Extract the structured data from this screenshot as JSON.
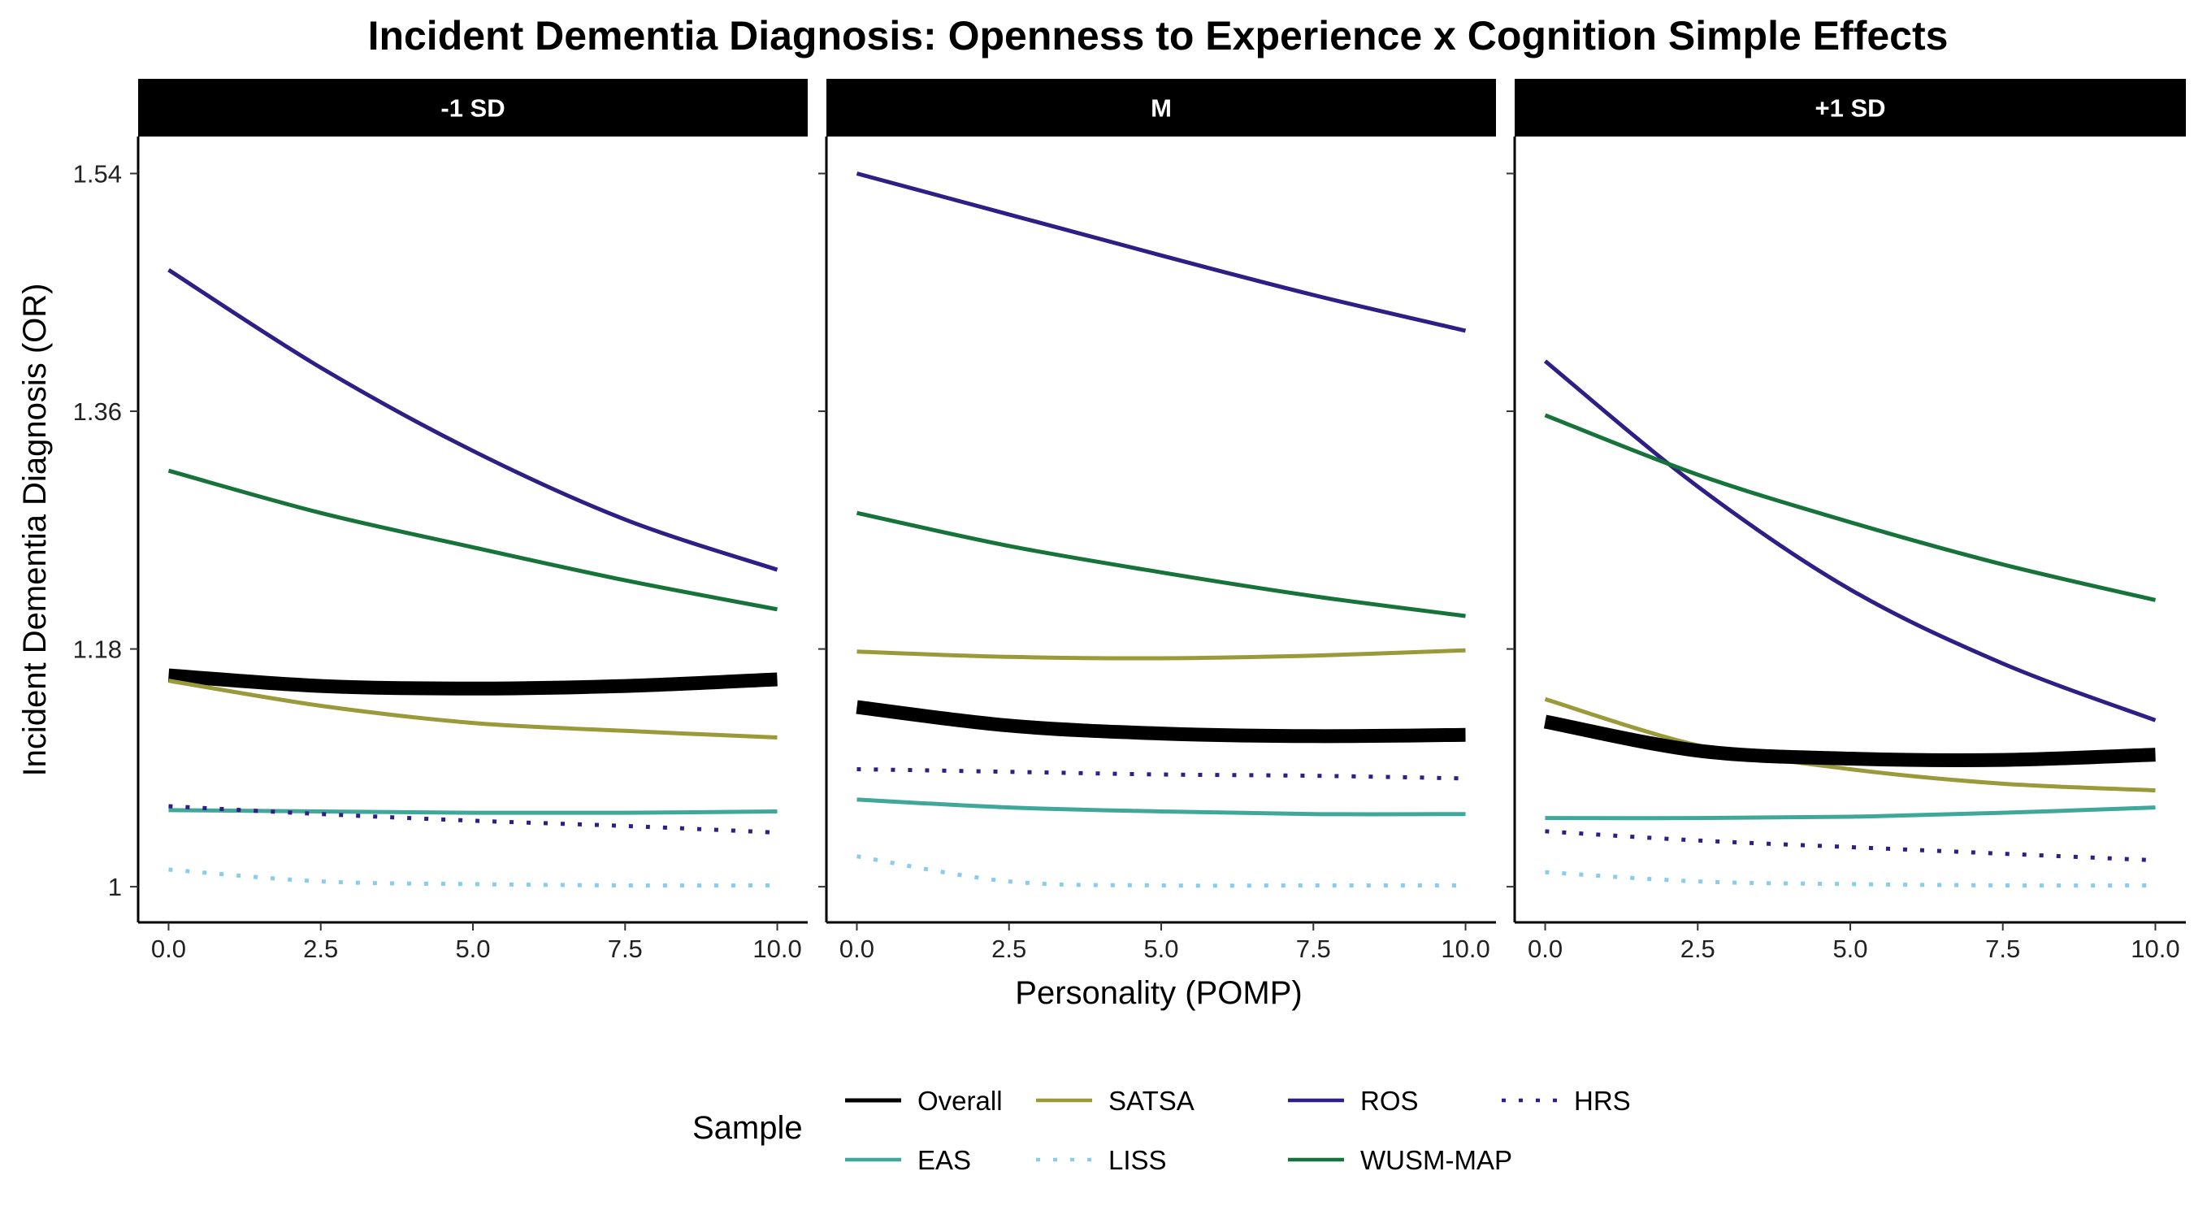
{
  "chart_data": {
    "type": "line",
    "title": "Incident Dementia Diagnosis: Openness to Experience x Cognition Simple Effects",
    "xlabel": "Personality (POMP)",
    "ylabel": "Incident Dementia Diagnosis (OR)",
    "xlim": [
      -0.5,
      10.5
    ],
    "ylim": [
      0.973,
      1.568
    ],
    "x_ticks": [
      0,
      2.5,
      5,
      7.5,
      10
    ],
    "x_tick_labels": [
      "0.0",
      "2.5",
      "5.0",
      "7.5",
      "10.0"
    ],
    "y_ticks": [
      1,
      1.18,
      1.36,
      1.54
    ],
    "y_tick_labels": [
      "1",
      "1.18",
      "1.36",
      "1.54"
    ],
    "grid": false,
    "x": [
      0,
      2.5,
      5,
      7.5,
      10
    ],
    "legend": {
      "title": "Sample",
      "position": "bottom",
      "entries": [
        "Overall",
        "EAS",
        "SATSA",
        "LISS",
        "ROS",
        "WUSM-MAP",
        "HRS"
      ]
    },
    "series_styles": {
      "Overall": {
        "color": "#000000",
        "dash": "solid",
        "width": "thick"
      },
      "ROS": {
        "color": "#2E1E86",
        "dash": "solid",
        "width": "normal"
      },
      "EAS": {
        "color": "#3FA89A",
        "dash": "solid",
        "width": "normal"
      },
      "WUSM-MAP": {
        "color": "#16733A",
        "dash": "solid",
        "width": "normal"
      },
      "SATSA": {
        "color": "#9A9A3A",
        "dash": "solid",
        "width": "normal"
      },
      "HRS": {
        "color": "#2E1E86",
        "dash": "dotted",
        "width": "normal"
      },
      "LISS": {
        "color": "#88CCEE",
        "dash": "dotted",
        "width": "normal"
      }
    },
    "panels": [
      {
        "label": "-1 SD",
        "series": [
          {
            "name": "ROS",
            "values": [
              1.467,
              1.393,
              1.33,
              1.278,
              1.24
            ]
          },
          {
            "name": "WUSM-MAP",
            "values": [
              1.315,
              1.283,
              1.257,
              1.232,
              1.21
            ]
          },
          {
            "name": "Overall",
            "values": [
              1.16,
              1.152,
              1.15,
              1.152,
              1.157
            ]
          },
          {
            "name": "SATSA",
            "values": [
              1.156,
              1.137,
              1.124,
              1.118,
              1.113
            ]
          },
          {
            "name": "EAS",
            "values": [
              1.058,
              1.057,
              1.056,
              1.056,
              1.057
            ]
          },
          {
            "name": "HRS",
            "values": [
              1.061,
              1.055,
              1.05,
              1.046,
              1.041
            ]
          },
          {
            "name": "LISS",
            "values": [
              1.013,
              1.004,
              1.002,
              1.001,
              1.001
            ]
          }
        ]
      },
      {
        "label": "M",
        "series": [
          {
            "name": "ROS",
            "values": [
              1.54,
              1.509,
              1.478,
              1.448,
              1.421
            ]
          },
          {
            "name": "WUSM-MAP",
            "values": [
              1.283,
              1.258,
              1.238,
              1.22,
              1.205
            ]
          },
          {
            "name": "SATSA",
            "values": [
              1.178,
              1.174,
              1.173,
              1.175,
              1.179
            ]
          },
          {
            "name": "Overall",
            "values": [
              1.136,
              1.122,
              1.116,
              1.114,
              1.115
            ]
          },
          {
            "name": "HRS",
            "values": [
              1.089,
              1.087,
              1.085,
              1.084,
              1.082
            ]
          },
          {
            "name": "EAS",
            "values": [
              1.066,
              1.06,
              1.057,
              1.055,
              1.055
            ]
          },
          {
            "name": "LISS",
            "values": [
              1.023,
              1.004,
              1.001,
              1.001,
              1.001
            ]
          }
        ]
      },
      {
        "label": "+1 SD",
        "series": [
          {
            "name": "ROS",
            "values": [
              1.398,
              1.303,
              1.225,
              1.169,
              1.126
            ]
          },
          {
            "name": "WUSM-MAP",
            "values": [
              1.357,
              1.312,
              1.276,
              1.244,
              1.217
            ]
          },
          {
            "name": "SATSA",
            "values": [
              1.142,
              1.107,
              1.089,
              1.078,
              1.073
            ]
          },
          {
            "name": "Overall",
            "values": [
              1.125,
              1.103,
              1.097,
              1.096,
              1.1
            ]
          },
          {
            "name": "EAS",
            "values": [
              1.052,
              1.052,
              1.053,
              1.056,
              1.06
            ]
          },
          {
            "name": "HRS",
            "values": [
              1.042,
              1.035,
              1.03,
              1.025,
              1.02
            ]
          },
          {
            "name": "LISS",
            "values": [
              1.011,
              1.004,
              1.002,
              1.001,
              1.001
            ]
          }
        ]
      }
    ]
  }
}
